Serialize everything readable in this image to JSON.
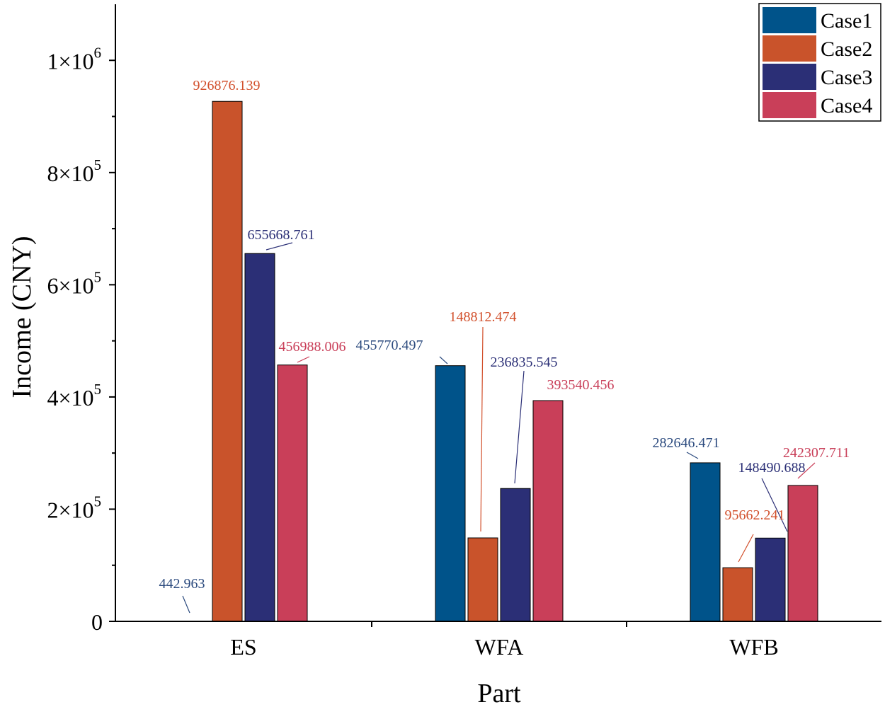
{
  "chart_data": {
    "type": "bar",
    "title": "",
    "xlabel": "Part",
    "ylabel": "Income (CNY)",
    "ylim": [
      0,
      1100000
    ],
    "categories": [
      "ES",
      "WFA",
      "WFB"
    ],
    "y_ticks": [
      {
        "value": 0,
        "base": "0",
        "exp": ""
      },
      {
        "value": 200000,
        "base": "2×10",
        "exp": "5"
      },
      {
        "value": 400000,
        "base": "4×10",
        "exp": "5"
      },
      {
        "value": 600000,
        "base": "6×10",
        "exp": "5"
      },
      {
        "value": 800000,
        "base": "8×10",
        "exp": "5"
      },
      {
        "value": 1000000,
        "base": "1×10",
        "exp": "6"
      }
    ],
    "legend_position": "top-right",
    "series": [
      {
        "name": "Case1",
        "color": "#00538A",
        "label_color": "#2B4A7E",
        "values": [
          442.963,
          455770.497,
          282646.471
        ],
        "labels": [
          "442.963",
          "455770.497",
          "282646.471"
        ]
      },
      {
        "name": "Case2",
        "color": "#C9532B",
        "label_color": "#D2502C",
        "values": [
          926876.139,
          148812.474,
          95662.241
        ],
        "labels": [
          "926876.139",
          "148812.474",
          "95662.241"
        ]
      },
      {
        "name": "Case3",
        "color": "#2B2F76",
        "label_color": "#2B2F76",
        "values": [
          655668.761,
          236835.545,
          148490.688
        ],
        "labels": [
          "655668.761",
          "236835.545",
          "148490.688"
        ]
      },
      {
        "name": "Case4",
        "color": "#C93F59",
        "label_color": "#C93F59",
        "values": [
          456988.006,
          393540.456,
          242307.711
        ],
        "labels": [
          "456988.006",
          "393540.456",
          "242307.711"
        ]
      }
    ]
  }
}
